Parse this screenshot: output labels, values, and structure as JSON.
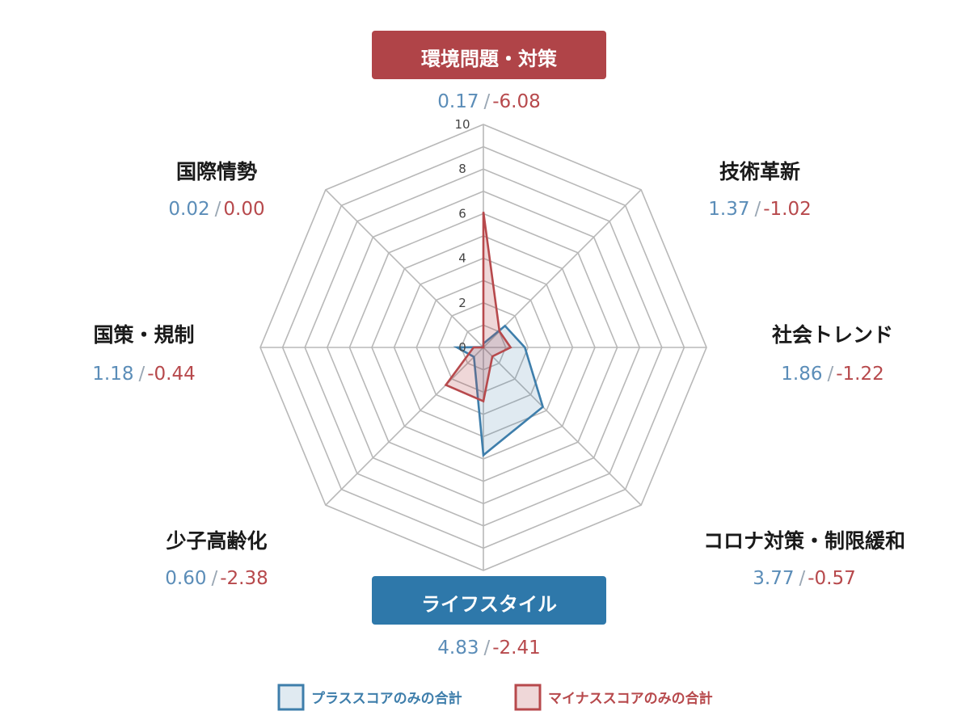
{
  "chart_data": {
    "type": "radar",
    "rlim": [
      0,
      10
    ],
    "ticks": [
      "0",
      "2",
      "4",
      "6",
      "8",
      "10"
    ],
    "categories": [
      {
        "label": "環境問題・対策",
        "plus": "0.17",
        "minus": "-6.08",
        "highlight": "negative"
      },
      {
        "label": "技術革新",
        "plus": "1.37",
        "minus": "-1.02",
        "highlight": "none"
      },
      {
        "label": "社会トレンド",
        "plus": "1.86",
        "minus": "-1.22",
        "highlight": "none"
      },
      {
        "label": "コロナ対策・制限緩和",
        "plus": "3.77",
        "minus": "-0.57",
        "highlight": "none"
      },
      {
        "label": "ライフスタイル",
        "plus": "4.83",
        "minus": "-2.41",
        "highlight": "positive"
      },
      {
        "label": "少子高齢化",
        "plus": "0.60",
        "minus": "-2.38",
        "highlight": "none"
      },
      {
        "label": "国策・規制",
        "plus": "1.18",
        "minus": "-0.44",
        "highlight": "none"
      },
      {
        "label": "国際情勢",
        "plus": "0.02",
        "minus": "0.00",
        "highlight": "none"
      }
    ],
    "series": [
      {
        "name": "プラススコアのみの合計",
        "key": "plus",
        "color": "#3e7eab",
        "fill": "rgba(62,126,171,0.16)"
      },
      {
        "name": "マイナススコアのみの合計",
        "key": "minus",
        "color": "#b7494c",
        "fill": "rgba(183,73,76,0.22)"
      }
    ],
    "grid": true,
    "legend_position": "bottom"
  },
  "colors": {
    "positive_badge": "#2e78aa",
    "negative_badge": "#b04448",
    "grid": "#b8b8b8"
  },
  "separator": "/"
}
